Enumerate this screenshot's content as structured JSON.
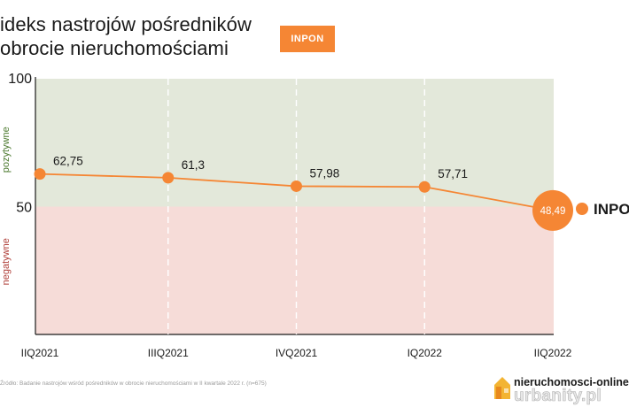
{
  "title": {
    "line1": "ideks nastrojów pośredników",
    "line2": "obrocie nieruchomościami"
  },
  "badge": "INPON",
  "chart_data": {
    "type": "line",
    "categories": [
      "IIQ2021",
      "IIIQ2021",
      "IVQ2021",
      "IQ2022",
      "IIQ2022"
    ],
    "series": [
      {
        "name": "INPON",
        "values": [
          62.75,
          61.3,
          57.98,
          57.71,
          48.49
        ]
      }
    ],
    "data_labels": [
      "62,75",
      "61,3",
      "57,98",
      "57,71",
      "48,49"
    ],
    "ylim": [
      0,
      100
    ],
    "y_ticks": [
      "100",
      "50"
    ],
    "zones": {
      "positive_label": "pozytywne",
      "negative_label": "negatywne",
      "threshold": 50,
      "positive_color": "#e3e8da",
      "negative_color": "#f6dcd8"
    },
    "legend": {
      "label": "INPON",
      "position": "right"
    },
    "line_color": "#f58634"
  },
  "source": "Źródło: Badanie nastrojów wśród pośredników w obrocie nieruchomościami w II kwartale 2022 r. (n=675)",
  "brand": {
    "top": "nieruchomosci-online",
    "bottom": "urbanity.pl"
  }
}
